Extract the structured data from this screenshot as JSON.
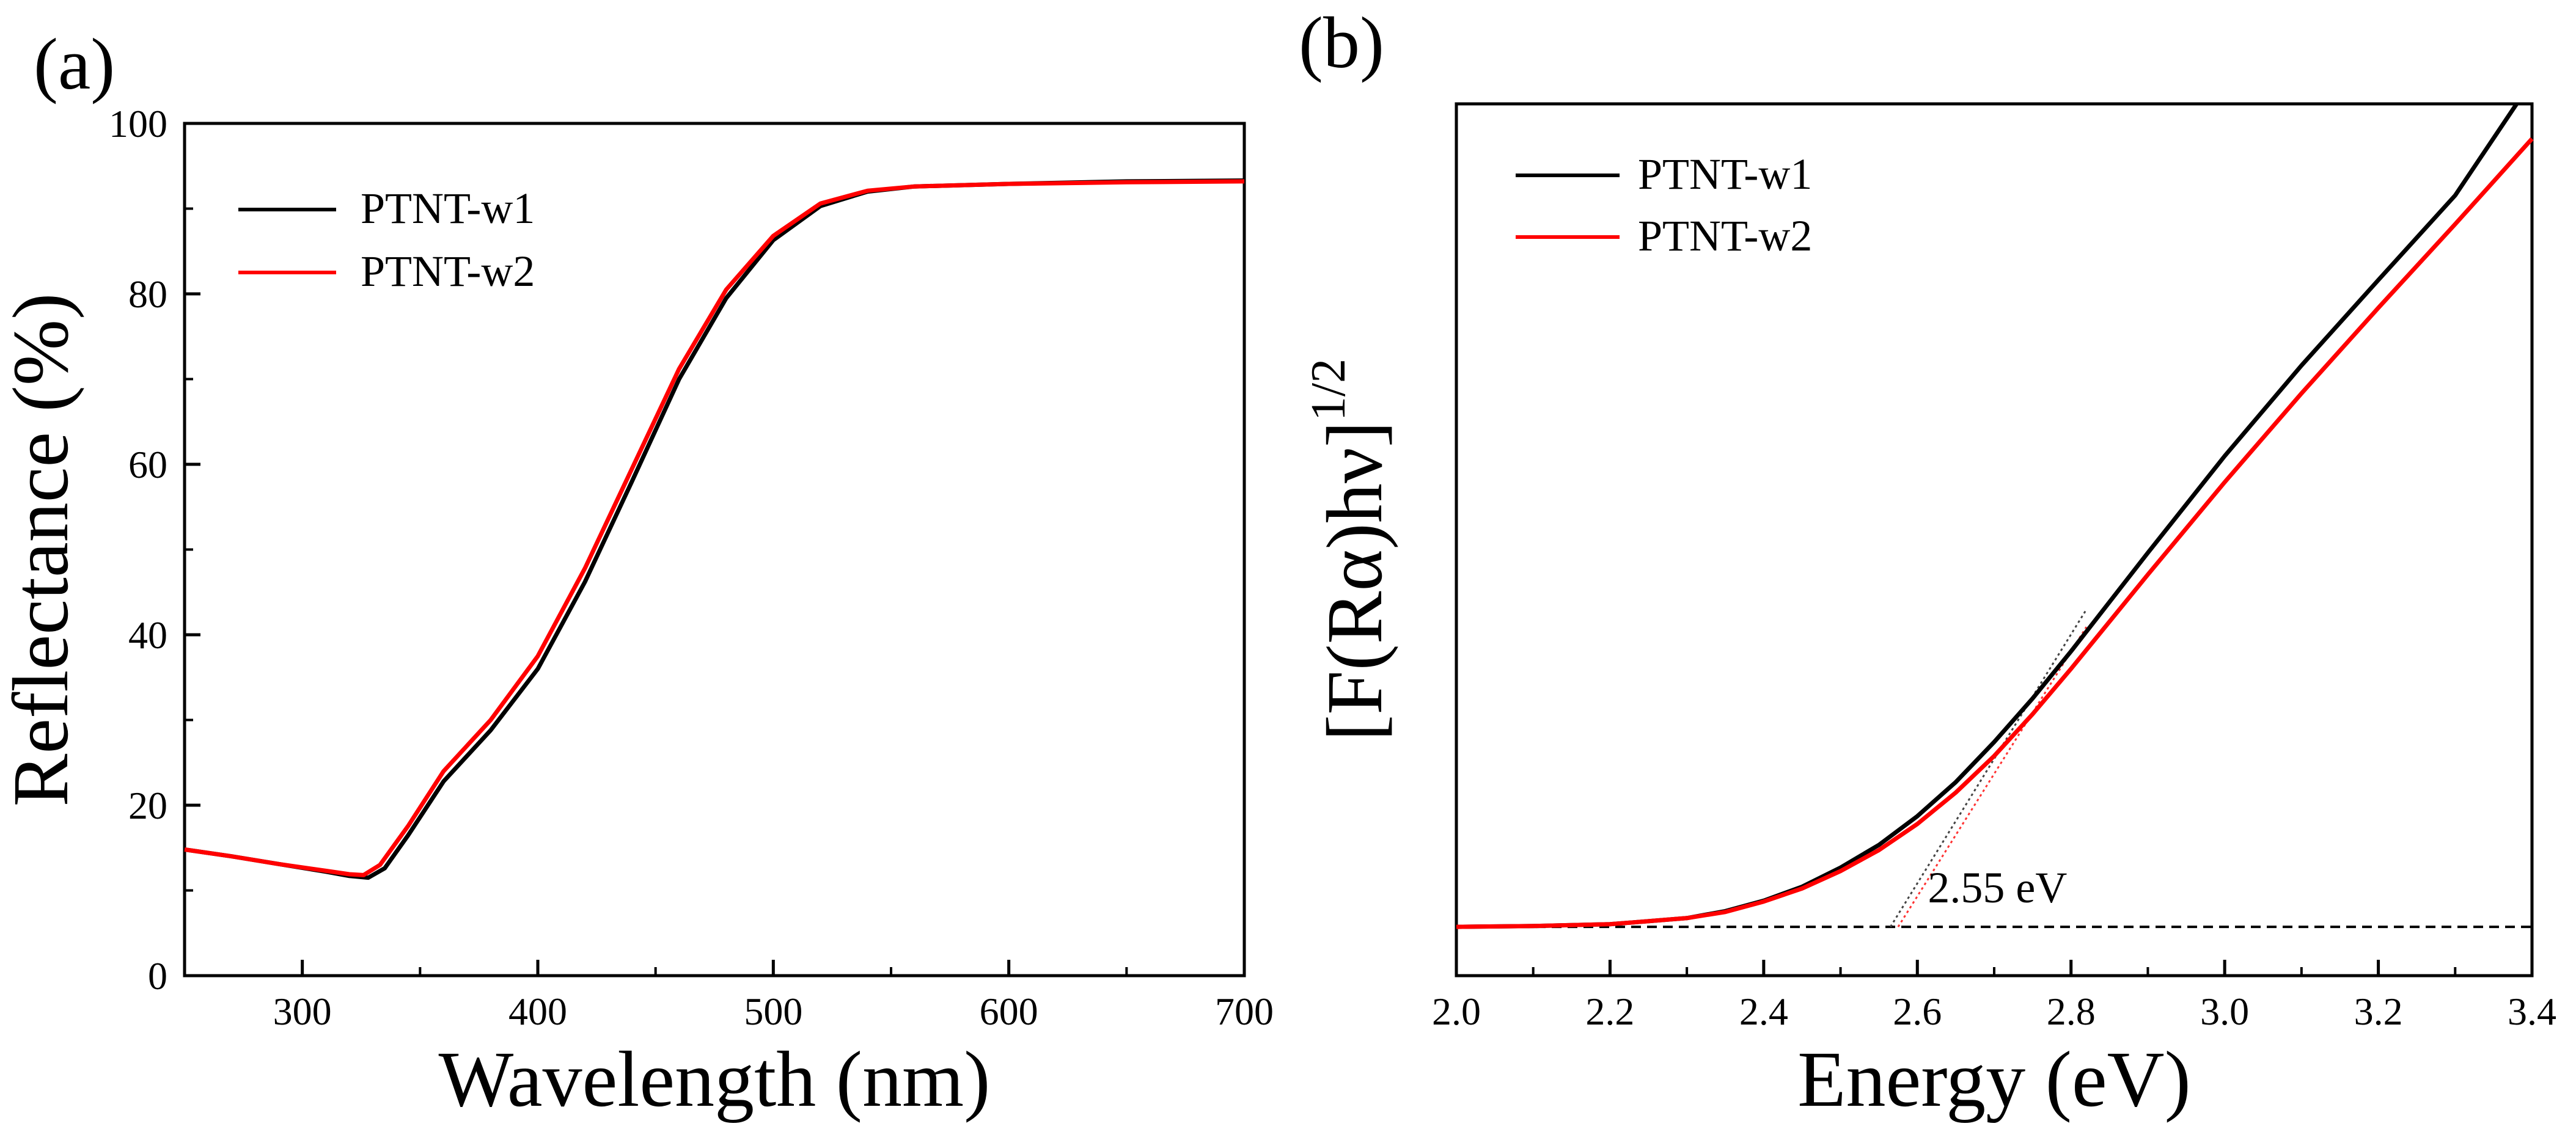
{
  "chart_data": [
    {
      "panel_label": "(a)",
      "type": "line",
      "title": "",
      "xlabel": "Wavelength (nm)",
      "ylabel": "Reflectance (%)",
      "xlim": [
        250,
        700
      ],
      "ylim": [
        0,
        100
      ],
      "xticks": [
        300,
        400,
        500,
        600,
        700
      ],
      "xtick_labels": [
        "300",
        "400",
        "500",
        "600",
        "700"
      ],
      "yticks": [
        0,
        20,
        40,
        60,
        80,
        100
      ],
      "ytick_labels": [
        "0",
        "20",
        "40",
        "60",
        "80",
        "100"
      ],
      "legend_position": "top-left",
      "grid": false,
      "series": [
        {
          "name": "PTNT-w1",
          "color": "#000000",
          "x": [
            250,
            270,
            290,
            310,
            320,
            328,
            335,
            345,
            360,
            380,
            400,
            420,
            440,
            460,
            480,
            500,
            520,
            540,
            560,
            600,
            650,
            700
          ],
          "y": [
            14.8,
            14.0,
            13.1,
            12.2,
            11.7,
            11.5,
            12.6,
            16.5,
            22.8,
            28.8,
            36.0,
            46.2,
            58.0,
            70.0,
            79.5,
            86.3,
            90.3,
            92.0,
            92.6,
            92.9,
            93.2,
            93.3
          ]
        },
        {
          "name": "PTNT-w2",
          "color": "#ff0000",
          "x": [
            250,
            270,
            290,
            310,
            320,
            326,
            333,
            345,
            360,
            380,
            400,
            420,
            440,
            460,
            480,
            500,
            520,
            540,
            560,
            600,
            650,
            700
          ],
          "y": [
            14.8,
            14.0,
            13.1,
            12.3,
            11.9,
            11.8,
            13.0,
            17.6,
            24.0,
            30.0,
            37.5,
            47.8,
            59.5,
            71.2,
            80.5,
            86.8,
            90.6,
            92.1,
            92.6,
            92.9,
            93.1,
            93.2
          ]
        }
      ]
    },
    {
      "panel_label": "(b)",
      "type": "line",
      "title": "",
      "xlabel": "Energy (eV)",
      "ylabel": "[F(Rα)hν]",
      "ylabel_superscript": "1/2",
      "xlim": [
        2.0,
        3.4
      ],
      "ylim": [
        0,
        100
      ],
      "xticks": [
        2.0,
        2.2,
        2.4,
        2.6,
        2.8,
        3.0,
        3.2,
        3.4
      ],
      "xtick_labels": [
        "2.0",
        "2.2",
        "2.4",
        "2.6",
        "2.8",
        "3.0",
        "3.2",
        "3.4"
      ],
      "yticks": [],
      "legend_position": "top-left",
      "grid": false,
      "annotation": {
        "text": "2.55 eV",
        "x": 2.55,
        "y": 5.6
      },
      "baseline": {
        "y": 5.6,
        "style": "dashed",
        "x": [
          2.0,
          3.4
        ]
      },
      "tangents": [
        {
          "series": "PTNT-w1",
          "color": "#444444",
          "x": [
            2.565,
            2.82
          ],
          "y": [
            5.6,
            42.0
          ]
        },
        {
          "series": "PTNT-w2",
          "color": "#ff3333",
          "x": [
            2.575,
            2.82
          ],
          "y": [
            5.6,
            40.0
          ]
        }
      ],
      "series": [
        {
          "name": "PTNT-w1",
          "color": "#000000",
          "x": [
            2.0,
            2.1,
            2.2,
            2.3,
            2.35,
            2.4,
            2.45,
            2.5,
            2.55,
            2.6,
            2.65,
            2.7,
            2.75,
            2.8,
            2.9,
            3.0,
            3.1,
            3.2,
            3.3,
            3.38
          ],
          "y": [
            5.6,
            5.7,
            5.9,
            6.6,
            7.4,
            8.6,
            10.2,
            12.4,
            15.0,
            18.3,
            22.2,
            26.8,
            31.8,
            37.2,
            48.5,
            59.6,
            70.0,
            79.8,
            89.5,
            100.0
          ]
        },
        {
          "name": "PTNT-w2",
          "color": "#ff0000",
          "x": [
            2.0,
            2.1,
            2.2,
            2.3,
            2.35,
            2.4,
            2.45,
            2.5,
            2.55,
            2.6,
            2.65,
            2.7,
            2.75,
            2.8,
            2.9,
            3.0,
            3.1,
            3.2,
            3.3,
            3.4
          ],
          "y": [
            5.6,
            5.7,
            5.9,
            6.6,
            7.3,
            8.5,
            10.0,
            12.0,
            14.4,
            17.4,
            21.0,
            25.2,
            30.0,
            35.2,
            46.0,
            56.6,
            66.8,
            76.6,
            86.2,
            96.0
          ]
        }
      ]
    }
  ]
}
